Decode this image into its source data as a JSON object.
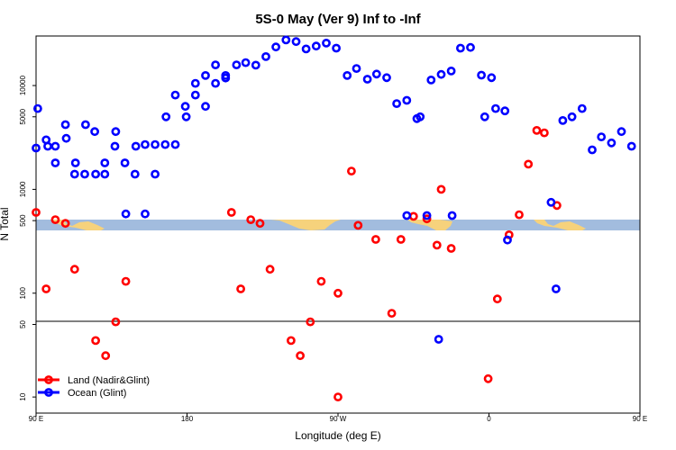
{
  "chart_data": {
    "type": "scatter",
    "title": "5S-0 May (Ver 9)   Inf to -Inf",
    "xlabel": "Longitude (deg E)",
    "ylabel": "N Total",
    "y_scale": "log",
    "ylim": [
      7,
      30000
    ],
    "x_ticks": [
      {
        "pos": 0,
        "label": "90 E"
      },
      {
        "pos": 1,
        "label": "180"
      },
      {
        "pos": 2,
        "label": "90 W"
      },
      {
        "pos": 3,
        "label": "0"
      },
      {
        "pos": 4,
        "label": "90 E"
      },
      {
        "pos": 5,
        "label": "180"
      }
    ],
    "y_ticks": [
      {
        "value": 10,
        "label": "10"
      },
      {
        "value": 50,
        "label": "50"
      },
      {
        "value": 100,
        "label": "100"
      },
      {
        "value": 500,
        "label": "500"
      },
      {
        "value": 1000,
        "label": "1000"
      },
      {
        "value": 5000,
        "label": "5000"
      },
      {
        "value": 10000,
        "label": "10000"
      }
    ],
    "reference_line": 50,
    "colors": {
      "land": "#ff0000",
      "ocean": "#0000ff",
      "band": "#a2bcde",
      "landmass": "#f6d27c"
    },
    "legend": [
      {
        "name": "Land (Nadir&Glint)",
        "color": "#ff0000"
      },
      {
        "name": "Ocean (Glint)",
        "color": "#0000ff"
      }
    ],
    "series": [
      {
        "name": "Land (Nadir&Glint)",
        "color": "#ff0000",
        "x": [
          0.15,
          0.2,
          0.25,
          0.3,
          0.35,
          0.47,
          0.52,
          0.58,
          0.63,
          0.7,
          2.2,
          2.27,
          2.35,
          2.39,
          2.52,
          2.69,
          2.75,
          2.82,
          2.98,
          3.13,
          3.27,
          3.3,
          3.43,
          3.46,
          3.52,
          3.55,
          3.63,
          3.6,
          3.68,
          3.65,
          3.9,
          4.15,
          4.2,
          4.25,
          4.3,
          4.35,
          4.47,
          4.52,
          4.58,
          4.63,
          4.7
        ],
        "y": [
          600,
          110,
          510,
          470,
          170,
          35,
          25,
          53,
          130,
          0,
          100,
          10,
          1500,
          450,
          330,
          64,
          330,
          550,
          290,
          1000,
          270,
          0,
          15,
          0,
          88,
          365,
          570,
          1750,
          3500,
          3600,
          700,
          600,
          110,
          510,
          470,
          170,
          35,
          25,
          53,
          130,
          0
        ],
        "_note": "x positions in grid units"
      }
    ],
    "land_points": [
      [
        90.0,
        600
      ],
      [
        96.0,
        110
      ],
      [
        101.5,
        510
      ],
      [
        107.5,
        470
      ],
      [
        113.0,
        170
      ],
      [
        125.5,
        35
      ],
      [
        131.5,
        25
      ],
      [
        137.5,
        53
      ],
      [
        143.5,
        130
      ],
      [
        -90.0,
        100
      ],
      [
        -90.0,
        10
      ],
      [
        -82.0,
        1500
      ],
      [
        -78.0,
        450
      ],
      [
        -67.5,
        330
      ],
      [
        -58.0,
        64
      ],
      [
        -52.5,
        330
      ],
      [
        -45.0,
        550
      ],
      [
        -37.0,
        520
      ],
      [
        -31.0,
        290
      ],
      [
        -28.5,
        1000
      ],
      [
        -22.5,
        270
      ],
      [
        -0.5,
        15
      ],
      [
        5.0,
        88
      ],
      [
        12.0,
        365
      ],
      [
        18.0,
        570
      ],
      [
        23.5,
        1750
      ],
      [
        28.5,
        3700
      ],
      [
        33.0,
        3500
      ],
      [
        40.5,
        700
      ],
      [
        206.5,
        600
      ],
      [
        212.0,
        110
      ],
      [
        218.0,
        510
      ],
      [
        223.5,
        470
      ],
      [
        229.5,
        170
      ],
      [
        242.0,
        35
      ],
      [
        247.5,
        25
      ],
      [
        253.5,
        53
      ],
      [
        260.0,
        130
      ]
    ],
    "ocean_points": [
      [
        90.0,
        2500
      ],
      [
        96.0,
        3000
      ],
      [
        101.5,
        1800
      ],
      [
        107.5,
        4200
      ],
      [
        113.0,
        1400
      ],
      [
        119.0,
        1400
      ],
      [
        125.0,
        3600
      ],
      [
        131.0,
        1800
      ],
      [
        137.0,
        2600
      ],
      [
        143.5,
        580
      ],
      [
        149.0,
        1400
      ],
      [
        155.0,
        2700
      ],
      [
        161.0,
        2700
      ],
      [
        167.5,
        5000
      ],
      [
        173.0,
        8100
      ],
      [
        179.0,
        6300
      ],
      [
        185.0,
        10500
      ],
      [
        191.0,
        12500
      ],
      [
        197.0,
        15800
      ],
      [
        203.0,
        11800
      ],
      [
        209.5,
        15800
      ],
      [
        215.0,
        16600
      ],
      [
        221.0,
        15700
      ],
      [
        227.0,
        19000
      ],
      [
        233.0,
        23500
      ],
      [
        239.0,
        27500
      ],
      [
        245.0,
        26500
      ],
      [
        251.0,
        22500
      ],
      [
        257.0,
        24000
      ],
      [
        263.0,
        25600
      ],
      [
        269.0,
        22900
      ],
      [
        275.5,
        12500
      ],
      [
        281.0,
        14600
      ],
      [
        287.5,
        11500
      ],
      [
        293.0,
        12900
      ],
      [
        299.0,
        11900
      ],
      [
        305.0,
        6700
      ],
      [
        311.0,
        7200
      ],
      [
        317.0,
        4800
      ],
      [
        323.0,
        560
      ],
      [
        311.0,
        560
      ],
      [
        330.0,
        36
      ],
      [
        338.0,
        560
      ],
      [
        319.0,
        5000
      ],
      [
        325.5,
        11300
      ],
      [
        331.5,
        12800
      ],
      [
        337.5,
        13800
      ],
      [
        343.0,
        22900
      ],
      [
        349.0,
        23300
      ],
      [
        355.5,
        12600
      ],
      [
        361.5,
        11900
      ],
      [
        -2.5,
        5000
      ],
      [
        4.0,
        6000
      ],
      [
        9.5,
        5700
      ],
      [
        11.0,
        325
      ],
      [
        37.0,
        750
      ],
      [
        40.0,
        110
      ],
      [
        44.0,
        4600
      ],
      [
        49.5,
        5000
      ],
      [
        55.5,
        6000
      ],
      [
        61.5,
        2400
      ],
      [
        67.0,
        3200
      ],
      [
        73.0,
        2800
      ],
      [
        79.0,
        3600
      ],
      [
        85.0,
        2600
      ],
      [
        91.0,
        6000
      ],
      [
        97.0,
        2600
      ],
      [
        101.5,
        2600
      ],
      [
        108.0,
        3100
      ],
      [
        113.5,
        1800
      ],
      [
        119.5,
        4200
      ],
      [
        125.5,
        1400
      ],
      [
        131.0,
        1400
      ],
      [
        137.5,
        3600
      ],
      [
        143.0,
        1800
      ],
      [
        149.5,
        2600
      ],
      [
        155.0,
        580
      ],
      [
        161.0,
        1400
      ],
      [
        167.0,
        2700
      ],
      [
        173.0,
        2700
      ],
      [
        179.5,
        5000
      ],
      [
        185.0,
        8100
      ],
      [
        191.0,
        6300
      ],
      [
        197.0,
        10500
      ],
      [
        203.0,
        12500
      ]
    ]
  }
}
